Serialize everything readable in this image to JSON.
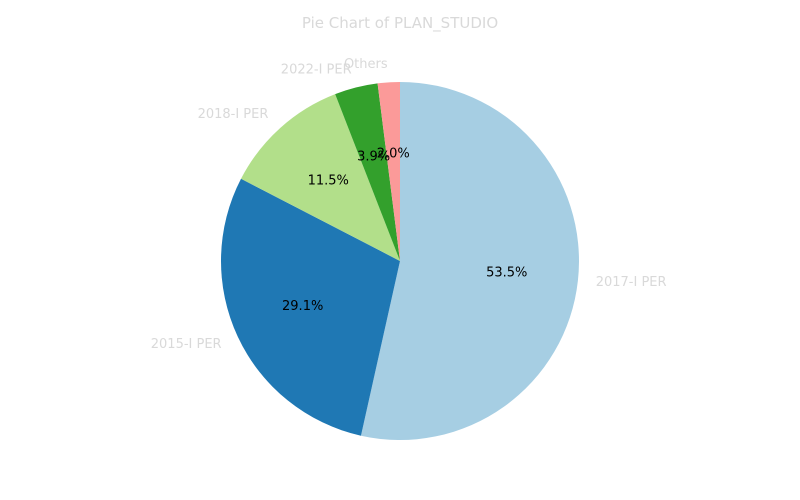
{
  "chart_data": {
    "type": "pie",
    "title": "Pie Chart of PLAN_STUDIO",
    "start_angle_deg": 90,
    "direction": "clockwise",
    "slices": [
      {
        "label": "2017-I PER",
        "value": 53.5,
        "pct_text": "53.5%",
        "color": "#a6cee3"
      },
      {
        "label": "2015-I PER",
        "value": 29.1,
        "pct_text": "29.1%",
        "color": "#1f78b4"
      },
      {
        "label": "2018-I PER",
        "value": 11.5,
        "pct_text": "11.5%",
        "color": "#b2df8a"
      },
      {
        "label": "2022-I PER",
        "value": 3.9,
        "pct_text": "3.9%",
        "color": "#33a02c"
      },
      {
        "label": "Others",
        "value": 2.0,
        "pct_text": "2.0%",
        "color": "#fb9a99"
      }
    ]
  }
}
